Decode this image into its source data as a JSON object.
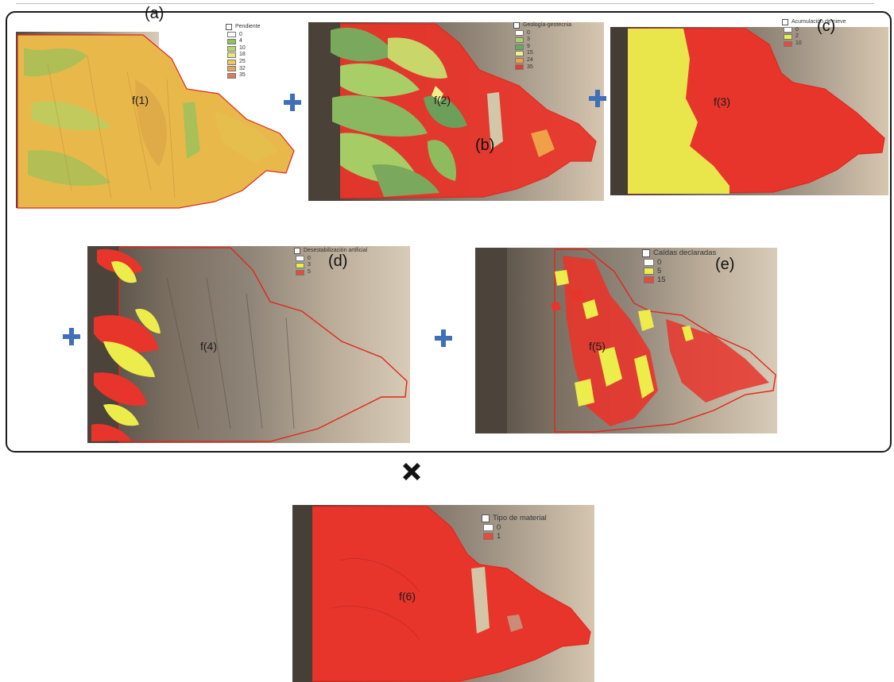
{
  "panels": {
    "a": {
      "letter": "(a)",
      "func": "f(1)",
      "legend": {
        "title": "Pendiente",
        "items": [
          {
            "label": "0",
            "color": "#ffffff"
          },
          {
            "label": "4",
            "color": "#8fc25a"
          },
          {
            "label": "10",
            "color": "#b7d66a"
          },
          {
            "label": "18",
            "color": "#e8e87a"
          },
          {
            "label": "25",
            "color": "#f0c860"
          },
          {
            "label": "32",
            "color": "#e7a35a"
          },
          {
            "label": "35",
            "color": "#dd7a5a"
          }
        ]
      }
    },
    "b": {
      "letter": "(b)",
      "func": "f(2)",
      "legend": {
        "title": "Geología-geotecnia",
        "items": [
          {
            "label": "0",
            "color": "#ffffff"
          },
          {
            "label": "3",
            "color": "#a8d26a"
          },
          {
            "label": "9",
            "color": "#6aa864"
          },
          {
            "label": "15",
            "color": "#f3ef8a"
          },
          {
            "label": "24",
            "color": "#f0a048"
          },
          {
            "label": "35",
            "color": "#e63b2e"
          }
        ]
      }
    },
    "c": {
      "letter": "(c)",
      "func": "f(3)",
      "legend": {
        "title": "Acumulación de nieve",
        "items": [
          {
            "label": "0",
            "color": "#ffffff"
          },
          {
            "label": "2",
            "color": "#ecec4a"
          },
          {
            "label": "10",
            "color": "#e84a3c"
          }
        ]
      }
    },
    "d": {
      "letter": "(d)",
      "func": "f(4)",
      "legend": {
        "title": "Desestabilización artificial",
        "items": [
          {
            "label": "0",
            "color": "#ffffff"
          },
          {
            "label": "3",
            "color": "#ecec4a"
          },
          {
            "label": "5",
            "color": "#e84a3c"
          }
        ]
      }
    },
    "e": {
      "letter": "(e)",
      "func": "f(5)",
      "legend": {
        "title": "Caídas declaradas",
        "items": [
          {
            "label": "0",
            "color": "#ffffff"
          },
          {
            "label": "5",
            "color": "#ecec4a"
          },
          {
            "label": "15",
            "color": "#e84a3c"
          }
        ]
      }
    },
    "f": {
      "func": "f(6)",
      "legend": {
        "title": "Tipo de material",
        "items": [
          {
            "label": "0",
            "color": "#ffffff"
          },
          {
            "label": "1",
            "color": "#e84a3c"
          }
        ]
      }
    }
  },
  "colors": {
    "plus": "#3f6fb7",
    "times": "#111111",
    "outline": "#e0271d",
    "terrain_dark": "#6b6257",
    "terrain_light": "#c9b8a2"
  },
  "operators": {
    "plus_icon": "plus-icon",
    "times_icon": "times-icon"
  }
}
